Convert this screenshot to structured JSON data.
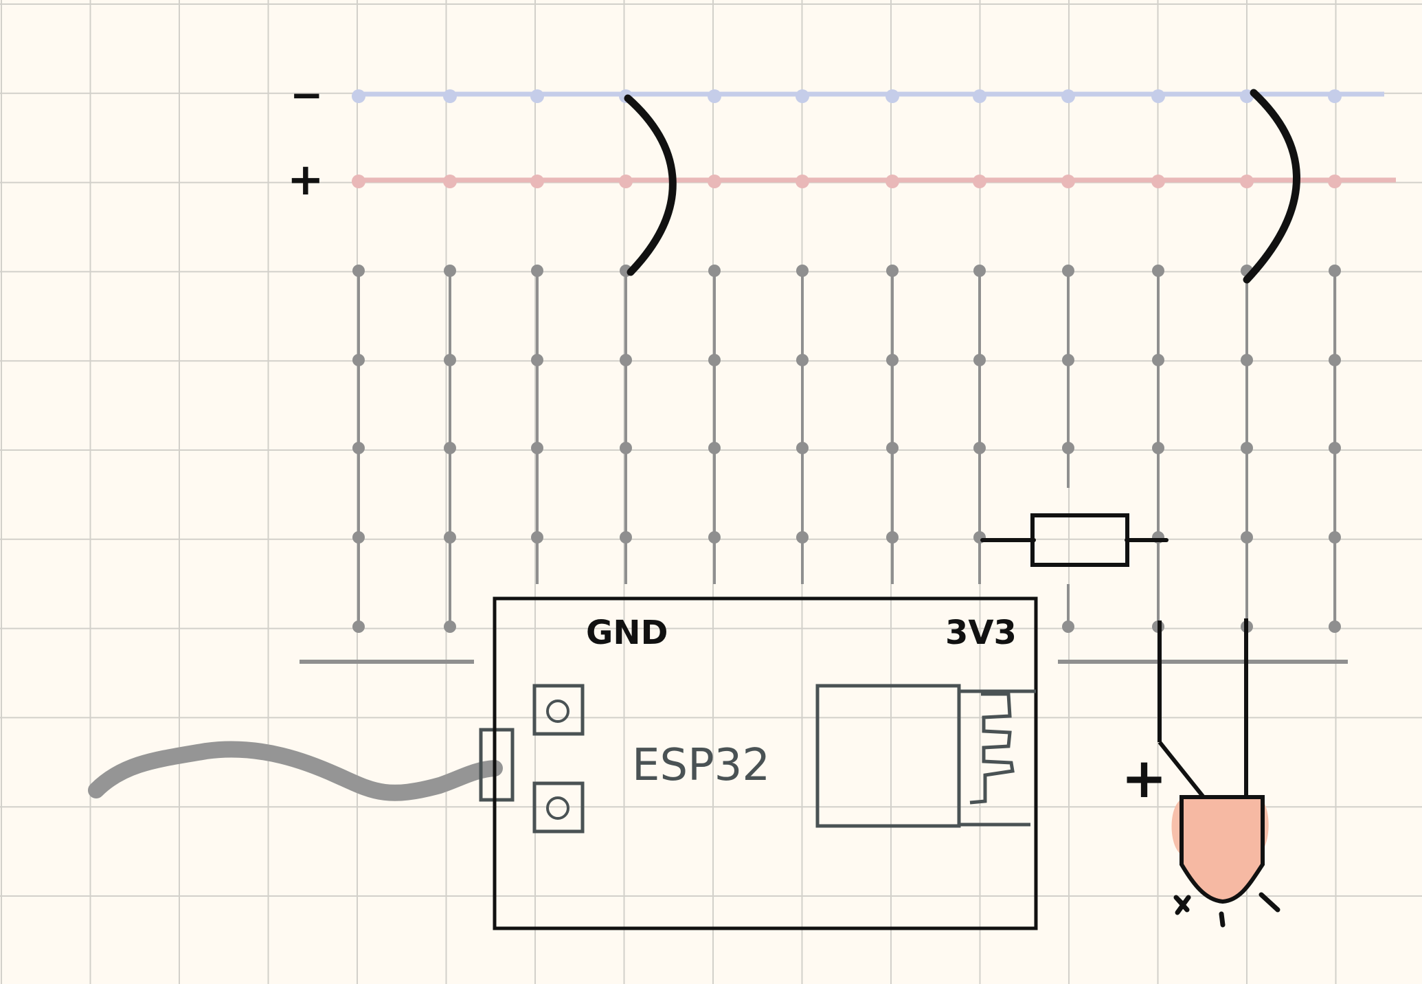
{
  "rails": {
    "minus_label": "−",
    "plus_label": "+",
    "minus_color": "#c5cde9",
    "plus_color": "#e9b8b8"
  },
  "esp32": {
    "name": "ESP32",
    "gnd_label": "GND",
    "v33_label": "3V3"
  },
  "led": {
    "polarity_label": "+",
    "fill_color": "#f6b9a3"
  },
  "colors": {
    "background": "#fffaf2",
    "grid": "#cfcdc7",
    "breadboard": "#8f8f8f",
    "wire": "#111111",
    "module_outline": "#4a5254",
    "usb_cable": "#959595"
  }
}
